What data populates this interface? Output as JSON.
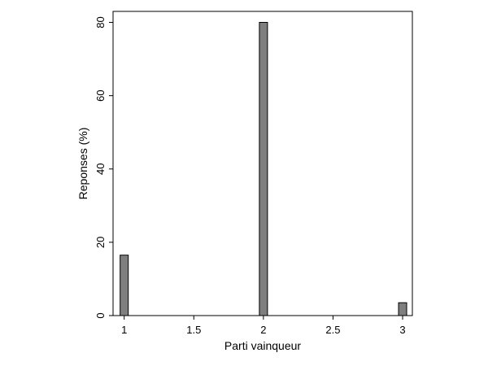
{
  "chart_data": {
    "type": "bar",
    "xlabel": "Parti vainqueur",
    "ylabel": "Reponses (%)",
    "x": [
      1,
      2,
      3
    ],
    "values": [
      16.5,
      80,
      3.5
    ],
    "xlim": [
      0.92,
      3.07
    ],
    "ylim": [
      0,
      83
    ],
    "xticks": [
      1,
      1.5,
      2,
      2.5,
      3
    ],
    "xtick_labels": [
      "1",
      "1.5",
      "2",
      "2.5",
      "3"
    ],
    "yticks": [
      0,
      20,
      40,
      60,
      80
    ],
    "ytick_labels": [
      "0",
      "20",
      "40",
      "60",
      "80"
    ],
    "bar_color": "#7f7f7f",
    "grid": false
  }
}
